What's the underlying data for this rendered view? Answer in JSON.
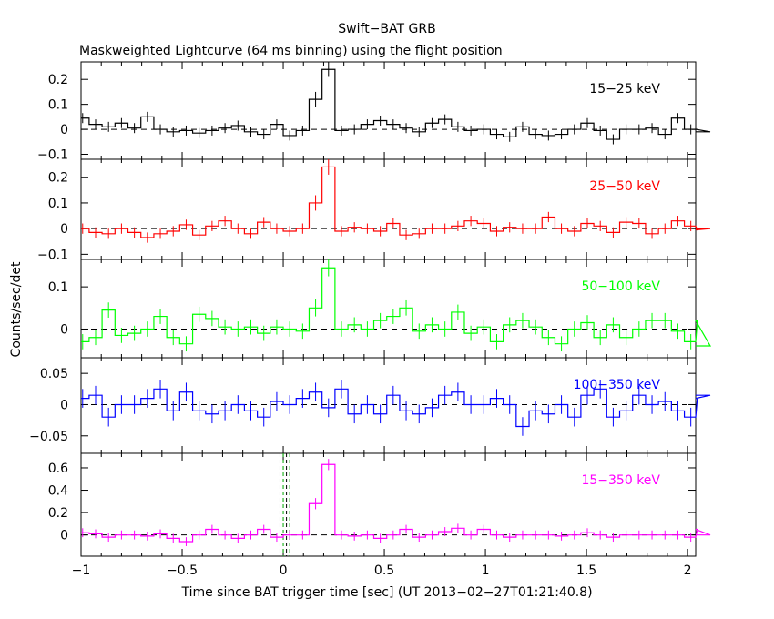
{
  "chart_data": {
    "type": "line",
    "title": "Swift−BAT GRB",
    "subtitle": "Maskweighted Lightcurve (64 ms binning) using the flight position",
    "xlabel": "Time since BAT trigger time [sec] (UT 2013−02−27T01:21:40.8)",
    "ylabel": "Counts/sec/det",
    "xlim": [
      -1.0,
      2.04
    ],
    "bin_width": 0.064,
    "bin_start": -1.024,
    "x_ticks": [
      {
        "value": -1,
        "label": "−1"
      },
      {
        "value": -0.5,
        "label": "−0.5"
      },
      {
        "value": 0,
        "label": "0"
      },
      {
        "value": 0.5,
        "label": "0.5"
      },
      {
        "value": 1,
        "label": "1"
      },
      {
        "value": 1.5,
        "label": "1.5"
      },
      {
        "value": 2,
        "label": "2"
      }
    ],
    "vertical_markers": [
      -0.016,
      0.0,
      0.016,
      0.032
    ],
    "panels": [
      {
        "name": "15−25 keV",
        "color": "#000000",
        "ylim": [
          -0.12,
          0.27
        ],
        "y_ticks": [
          {
            "value": -0.1,
            "label": "−0.1"
          },
          {
            "value": 0,
            "label": "0"
          },
          {
            "value": 0.1,
            "label": "0.1"
          },
          {
            "value": 0.2,
            "label": "0.2"
          }
        ],
        "values": [
          0.045,
          0.02,
          0.01,
          0.025,
          0.005,
          0.05,
          0.0,
          -0.01,
          -0.005,
          -0.015,
          -0.005,
          0.005,
          0.015,
          -0.01,
          -0.02,
          0.02,
          -0.025,
          -0.005,
          0.12,
          0.24,
          -0.005,
          0.0,
          0.02,
          0.035,
          0.02,
          0.005,
          -0.01,
          0.025,
          0.04,
          0.01,
          -0.005,
          0.0,
          -0.02,
          -0.03,
          0.01,
          -0.02,
          -0.025,
          -0.02,
          0.0,
          0.025,
          -0.005,
          -0.04,
          0.0,
          0.0,
          0.005,
          -0.02,
          0.045,
          0.0,
          0.0,
          -0.01
        ],
        "errors": [
          0.02,
          0.02,
          0.02,
          0.02,
          0.02,
          0.02,
          0.02,
          0.02,
          0.02,
          0.02,
          0.02,
          0.02,
          0.02,
          0.02,
          0.02,
          0.02,
          0.02,
          0.02,
          0.03,
          0.03,
          0.02,
          0.02,
          0.02,
          0.02,
          0.02,
          0.02,
          0.02,
          0.02,
          0.02,
          0.02,
          0.02,
          0.02,
          0.02,
          0.02,
          0.02,
          0.02,
          0.02,
          0.02,
          0.02,
          0.02,
          0.02,
          0.02,
          0.02,
          0.02,
          0.02,
          0.02,
          0.02,
          0.02,
          0.02,
          0.02
        ]
      },
      {
        "name": "25−50 keV",
        "color": "#ff0000",
        "ylim": [
          -0.12,
          0.27
        ],
        "y_ticks": [
          {
            "value": -0.1,
            "label": "−0.1"
          },
          {
            "value": 0,
            "label": "0"
          },
          {
            "value": 0.1,
            "label": "0.1"
          },
          {
            "value": 0.2,
            "label": "0.2"
          }
        ],
        "values": [
          0.0,
          -0.015,
          -0.02,
          0.0,
          -0.015,
          -0.035,
          -0.02,
          -0.01,
          0.015,
          -0.025,
          0.01,
          0.03,
          0.0,
          -0.02,
          0.025,
          0.0,
          -0.01,
          0.0,
          0.1,
          0.24,
          -0.01,
          0.005,
          0.0,
          -0.01,
          0.02,
          -0.025,
          -0.02,
          0.0,
          0.0,
          0.01,
          0.03,
          0.02,
          -0.01,
          0.005,
          0.0,
          0.0,
          0.045,
          0.0,
          -0.01,
          0.02,
          0.01,
          -0.015,
          0.025,
          0.02,
          -0.02,
          0.0,
          0.03,
          0.01,
          -0.005,
          0.0
        ],
        "errors": [
          0.02,
          0.02,
          0.02,
          0.02,
          0.02,
          0.02,
          0.02,
          0.02,
          0.02,
          0.02,
          0.02,
          0.02,
          0.02,
          0.02,
          0.02,
          0.02,
          0.02,
          0.02,
          0.03,
          0.03,
          0.02,
          0.02,
          0.02,
          0.02,
          0.02,
          0.02,
          0.02,
          0.02,
          0.02,
          0.02,
          0.02,
          0.02,
          0.02,
          0.02,
          0.02,
          0.02,
          0.02,
          0.02,
          0.02,
          0.02,
          0.02,
          0.02,
          0.02,
          0.02,
          0.02,
          0.02,
          0.02,
          0.02,
          0.02,
          0.02
        ]
      },
      {
        "name": "50−100 keV",
        "color": "#00ff00",
        "ylim": [
          -0.068,
          0.165
        ],
        "y_ticks": [
          {
            "value": 0,
            "label": "0"
          },
          {
            "value": 0.1,
            "label": "0.1"
          }
        ],
        "values": [
          -0.03,
          -0.02,
          0.045,
          -0.015,
          -0.01,
          0.0,
          0.03,
          -0.02,
          -0.035,
          0.035,
          0.025,
          0.005,
          0.0,
          0.005,
          -0.01,
          0.005,
          0.0,
          -0.005,
          0.05,
          0.145,
          0.0,
          0.01,
          0.0,
          0.02,
          0.03,
          0.05,
          -0.005,
          0.01,
          0.0,
          0.04,
          -0.01,
          0.005,
          -0.03,
          0.01,
          0.02,
          0.005,
          -0.02,
          -0.035,
          0.0,
          0.015,
          -0.02,
          0.01,
          -0.02,
          0.0,
          0.02,
          0.02,
          -0.005,
          -0.03,
          0.02,
          -0.04
        ],
        "errors": [
          0.018,
          0.018,
          0.018,
          0.018,
          0.018,
          0.018,
          0.018,
          0.018,
          0.018,
          0.018,
          0.018,
          0.018,
          0.018,
          0.018,
          0.018,
          0.018,
          0.018,
          0.018,
          0.02,
          0.02,
          0.018,
          0.018,
          0.018,
          0.018,
          0.018,
          0.018,
          0.018,
          0.018,
          0.018,
          0.018,
          0.018,
          0.018,
          0.018,
          0.018,
          0.018,
          0.018,
          0.018,
          0.018,
          0.018,
          0.018,
          0.018,
          0.018,
          0.018,
          0.018,
          0.018,
          0.018,
          0.018,
          0.018,
          0.018,
          0.018
        ]
      },
      {
        "name": "100−350 keV",
        "color": "#0000ff",
        "ylim": [
          -0.078,
          0.075
        ],
        "y_ticks": [
          {
            "value": -0.05,
            "label": "−0.05"
          },
          {
            "value": 0,
            "label": "0"
          },
          {
            "value": 0.05,
            "label": "0.05"
          }
        ],
        "values": [
          0.01,
          0.015,
          -0.02,
          0.0,
          0.0,
          0.01,
          0.025,
          -0.01,
          0.02,
          -0.01,
          -0.015,
          -0.01,
          0.0,
          -0.01,
          -0.02,
          0.005,
          0.0,
          0.01,
          0.02,
          -0.005,
          0.025,
          -0.015,
          0.0,
          -0.015,
          0.015,
          -0.01,
          -0.015,
          -0.005,
          0.015,
          0.02,
          0.0,
          0.0,
          0.01,
          0.0,
          -0.035,
          -0.01,
          -0.015,
          0.0,
          -0.02,
          0.015,
          0.025,
          -0.02,
          -0.01,
          0.015,
          0.0,
          0.005,
          -0.01,
          -0.02,
          0.01,
          0.015
        ],
        "errors": [
          0.015,
          0.015,
          0.015,
          0.015,
          0.015,
          0.015,
          0.015,
          0.015,
          0.015,
          0.015,
          0.015,
          0.015,
          0.015,
          0.015,
          0.015,
          0.015,
          0.015,
          0.015,
          0.015,
          0.015,
          0.015,
          0.015,
          0.015,
          0.015,
          0.015,
          0.015,
          0.015,
          0.015,
          0.015,
          0.015,
          0.015,
          0.015,
          0.015,
          0.015,
          0.015,
          0.015,
          0.015,
          0.015,
          0.015,
          0.015,
          0.015,
          0.015,
          0.015,
          0.015,
          0.015,
          0.015,
          0.015,
          0.015,
          0.015,
          0.015
        ]
      },
      {
        "name": "15−350 keV",
        "color": "#ff00ff",
        "ylim": [
          -0.19,
          0.73
        ],
        "y_ticks": [
          {
            "value": 0,
            "label": "0"
          },
          {
            "value": 0.2,
            "label": "0.2"
          },
          {
            "value": 0.4,
            "label": "0.4"
          },
          {
            "value": 0.6,
            "label": "0.6"
          }
        ],
        "values": [
          0.02,
          0.01,
          -0.02,
          0.0,
          0.0,
          -0.01,
          0.01,
          -0.03,
          -0.06,
          0.0,
          0.05,
          0.0,
          -0.03,
          0.0,
          0.05,
          -0.02,
          0.0,
          0.0,
          0.28,
          0.63,
          0.0,
          -0.01,
          0.0,
          -0.03,
          0.0,
          0.05,
          -0.02,
          0.0,
          0.03,
          0.06,
          0.0,
          0.05,
          0.0,
          -0.02,
          0.0,
          0.0,
          0.0,
          -0.01,
          0.0,
          0.02,
          0.0,
          -0.02,
          0.0,
          0.0,
          0.0,
          0.0,
          0.0,
          -0.02,
          0.05,
          0.0
        ],
        "errors": [
          0.04,
          0.04,
          0.04,
          0.04,
          0.04,
          0.04,
          0.04,
          0.04,
          0.04,
          0.04,
          0.04,
          0.04,
          0.04,
          0.04,
          0.04,
          0.04,
          0.04,
          0.04,
          0.05,
          0.05,
          0.04,
          0.04,
          0.04,
          0.04,
          0.04,
          0.04,
          0.04,
          0.04,
          0.04,
          0.04,
          0.04,
          0.04,
          0.04,
          0.04,
          0.04,
          0.04,
          0.04,
          0.04,
          0.04,
          0.04,
          0.04,
          0.04,
          0.04,
          0.04,
          0.04,
          0.04,
          0.04,
          0.04,
          0.04,
          0.04
        ]
      }
    ]
  }
}
